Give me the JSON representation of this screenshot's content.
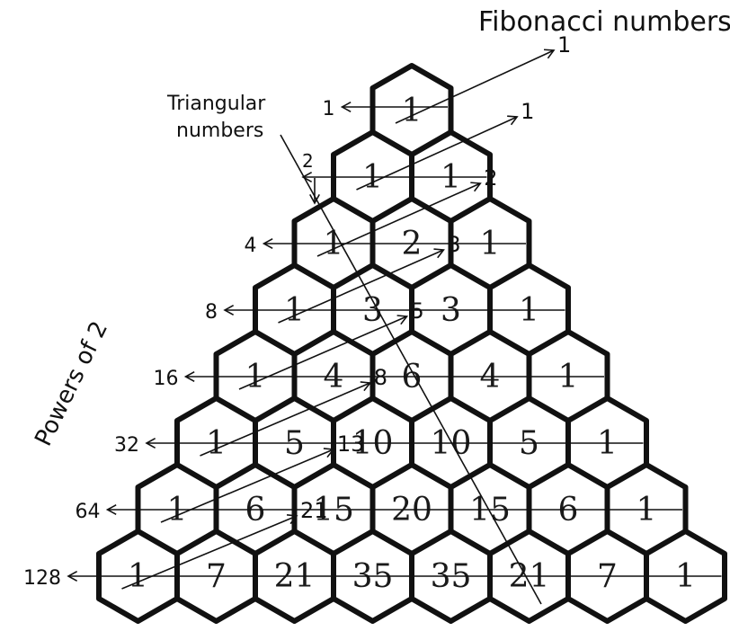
{
  "title": "Fibonacci numbers",
  "labels": {
    "triangular_line1": "Triangular",
    "triangular_line2": "numbers",
    "triangular_start": "2",
    "powers": "Powers of 2"
  },
  "rows": [
    [
      1
    ],
    [
      1,
      1
    ],
    [
      1,
      2,
      1
    ],
    [
      1,
      3,
      3,
      1
    ],
    [
      1,
      4,
      6,
      4,
      1
    ],
    [
      1,
      5,
      10,
      10,
      5,
      1
    ],
    [
      1,
      6,
      15,
      20,
      15,
      6,
      1
    ],
    [
      1,
      7,
      21,
      35,
      35,
      21,
      7,
      1
    ]
  ],
  "row_sums": [
    "1",
    "",
    "4",
    "8",
    "16",
    "32",
    "64",
    "128"
  ],
  "fibonacci": [
    "1",
    "1",
    "2",
    "3",
    "5",
    "8",
    "13",
    "21"
  ],
  "colors": {
    "stroke": "#111111",
    "background": "#ffffff"
  }
}
